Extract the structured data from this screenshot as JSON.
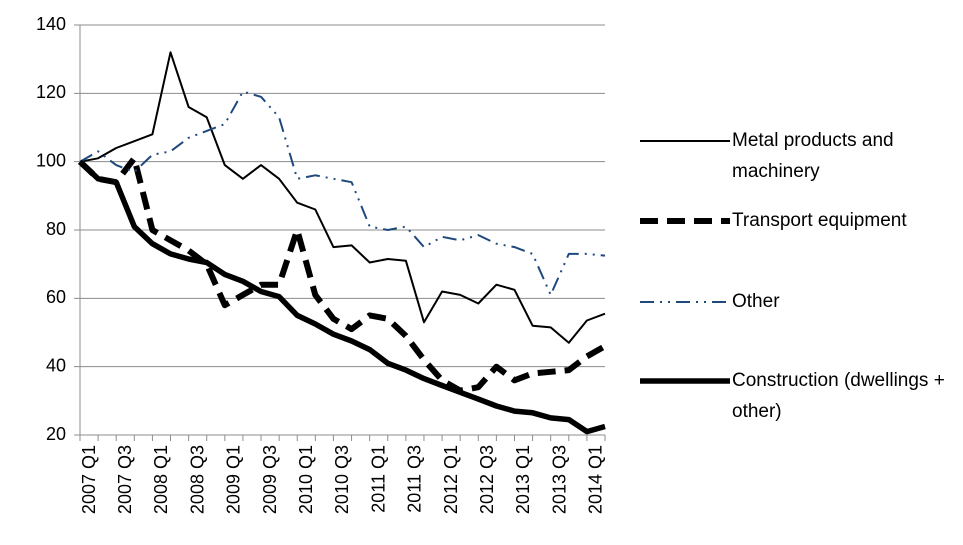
{
  "chart_data": {
    "type": "line",
    "categories": [
      "2007 Q1",
      null,
      "2007 Q3",
      null,
      "2008 Q1",
      null,
      "2008 Q3",
      null,
      "2009 Q1",
      null,
      "2009 Q3",
      null,
      "2010 Q1",
      null,
      "2010 Q3",
      null,
      "2011 Q1",
      null,
      "2011 Q3",
      null,
      "2012 Q1",
      null,
      "2012 Q3",
      null,
      "2013 Q1",
      null,
      "2013 Q3",
      null,
      "2014 Q1",
      null
    ],
    "series": [
      {
        "name": "Metal products and machinery",
        "color": "#000000",
        "values": [
          100,
          101,
          104,
          106,
          108,
          132,
          116,
          113,
          99,
          95,
          99,
          95,
          88,
          86,
          75,
          75.5,
          70.5,
          71.5,
          71,
          53,
          62,
          61,
          58.5,
          64,
          62.5,
          52,
          51.5,
          47,
          53.5,
          55.5
        ]
      },
      {
        "name": "Transport equipment",
        "color": "#000000",
        "values": [
          100,
          95,
          94,
          101,
          80,
          77,
          74,
          70,
          58,
          61,
          64,
          64,
          80,
          61,
          54,
          51,
          55,
          54,
          49,
          42,
          36,
          33,
          34,
          40,
          36,
          38,
          38.5,
          39,
          43,
          46
        ]
      },
      {
        "name": "Other",
        "color": "#1f497d",
        "values": [
          100,
          103,
          99,
          97,
          102,
          103,
          107,
          109,
          111,
          120.5,
          119,
          113,
          95,
          96,
          95,
          94,
          81,
          80,
          81,
          75,
          78,
          77,
          78.5,
          76,
          75,
          73,
          61,
          73,
          73,
          72.5
        ]
      },
      {
        "name": "Construction (dwellings + other)",
        "color": "#000000",
        "values": [
          100,
          95,
          94,
          81,
          76,
          73,
          71.5,
          70.5,
          67,
          65,
          62,
          60.5,
          55,
          52.5,
          49.5,
          47.5,
          45,
          41,
          39,
          36.5,
          34.5,
          32.5,
          30.5,
          28.5,
          27,
          26.5,
          25,
          24.5,
          21,
          22.5
        ]
      }
    ],
    "ylim": [
      20,
      140
    ],
    "yticks": [
      20,
      40,
      60,
      80,
      100,
      120,
      140
    ],
    "grid": true,
    "legend": "right"
  }
}
